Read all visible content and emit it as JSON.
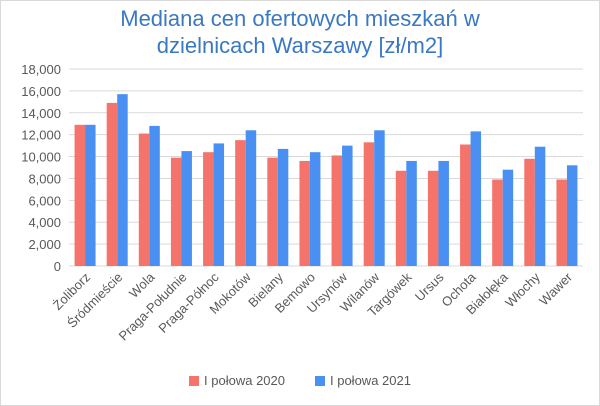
{
  "chart_data": {
    "type": "bar",
    "title_line1": "Mediana cen ofertowych mieszkań w",
    "title_line2": "dzielnicach Warszawy [zł/m2]",
    "categories": [
      "Żoliborz",
      "Śródmieście",
      "Wola",
      "Praga-Południe",
      "Praga-Północ",
      "Mokotów",
      "Bielany",
      "Bemowo",
      "Ursynów",
      "Wilanów",
      "Targówek",
      "Ursus",
      "Ochota",
      "Białołęka",
      "Włochy",
      "Wawer"
    ],
    "series": [
      {
        "name": "I połowa 2020",
        "color": "#f4736a",
        "values": [
          12900,
          14900,
          12100,
          9900,
          10400,
          11500,
          9900,
          9600,
          10100,
          11300,
          8700,
          8700,
          11100,
          7900,
          9800,
          7900
        ]
      },
      {
        "name": "I połowa 2021",
        "color": "#4a90f2",
        "values": [
          12900,
          15700,
          12800,
          10500,
          11200,
          12400,
          10700,
          10400,
          11000,
          12400,
          9600,
          9600,
          12300,
          8800,
          10900,
          9200
        ]
      }
    ],
    "ylim": [
      0,
      18000
    ],
    "yticks": [
      "0",
      "2,000",
      "4,000",
      "6,000",
      "8,000",
      "10,000",
      "12,000",
      "14,000",
      "16,000",
      "18,000"
    ],
    "grid": true,
    "legend_position": "bottom"
  }
}
